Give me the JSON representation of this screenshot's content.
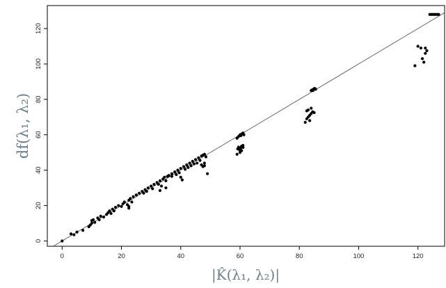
{
  "chart_data": {
    "type": "scatter",
    "title": "",
    "xlabel": "|K̂(λ₁, λ₂)|",
    "ylabel": "df(λ₁, λ₂)",
    "xlim": [
      -5,
      129
    ],
    "ylim": [
      -3,
      133
    ],
    "x_ticks": [
      0,
      20,
      40,
      60,
      80,
      100,
      120
    ],
    "y_ticks": [
      0,
      20,
      40,
      60,
      80,
      100,
      120
    ],
    "reference_line": {
      "type": "identity",
      "slope": 1,
      "intercept": 0,
      "color": "#555555"
    },
    "grid": false,
    "legend": "none",
    "point_color": "#000000",
    "points": [
      [
        0,
        0
      ],
      [
        3,
        4
      ],
      [
        4,
        3.5
      ],
      [
        5,
        5
      ],
      [
        7,
        6
      ],
      [
        9,
        8
      ],
      [
        9.5,
        9
      ],
      [
        10,
        10
      ],
      [
        10,
        11.5
      ],
      [
        10.5,
        12
      ],
      [
        11,
        10.5
      ],
      [
        12,
        13
      ],
      [
        12.5,
        12
      ],
      [
        13,
        14
      ],
      [
        14,
        13.5
      ],
      [
        15,
        15
      ],
      [
        15.5,
        16
      ],
      [
        16,
        17
      ],
      [
        16.5,
        15.5
      ],
      [
        17,
        18
      ],
      [
        17.5,
        17
      ],
      [
        18,
        19
      ],
      [
        19,
        20
      ],
      [
        20,
        19.5
      ],
      [
        20.5,
        21
      ],
      [
        21,
        22
      ],
      [
        22,
        20.5
      ],
      [
        22.5,
        23
      ],
      [
        23,
        24
      ],
      [
        23.5,
        22
      ],
      [
        22.5,
        18.5
      ],
      [
        22.5,
        19.5
      ],
      [
        24,
        25
      ],
      [
        25,
        26
      ],
      [
        26,
        27
      ],
      [
        27,
        28
      ],
      [
        27.5,
        27
      ],
      [
        28,
        29
      ],
      [
        28.5,
        28
      ],
      [
        29,
        30
      ],
      [
        30,
        31
      ],
      [
        30.5,
        29.5
      ],
      [
        31,
        32
      ],
      [
        32,
        33
      ],
      [
        32.5,
        32
      ],
      [
        33,
        34
      ],
      [
        33.5,
        31
      ],
      [
        33,
        28.5
      ],
      [
        34,
        35
      ],
      [
        34.5,
        36
      ],
      [
        35,
        34
      ],
      [
        35,
        30
      ],
      [
        35.5,
        36.5
      ],
      [
        36,
        37
      ],
      [
        37,
        38
      ],
      [
        37,
        36.5
      ],
      [
        38,
        39
      ],
      [
        38.5,
        37.5
      ],
      [
        39,
        40
      ],
      [
        39.5,
        38.5
      ],
      [
        40,
        41
      ],
      [
        40,
        36
      ],
      [
        40.5,
        34.5
      ],
      [
        41,
        42
      ],
      [
        41.5,
        40.5
      ],
      [
        42,
        43
      ],
      [
        42.5,
        41.5
      ],
      [
        43,
        44
      ],
      [
        43.5,
        42.5
      ],
      [
        44,
        45
      ],
      [
        44.5,
        43.5
      ],
      [
        45,
        46
      ],
      [
        45.5,
        44
      ],
      [
        46,
        47
      ],
      [
        46.5,
        45.5
      ],
      [
        47,
        48
      ],
      [
        47.5,
        48.5
      ],
      [
        48,
        49
      ],
      [
        48.5,
        47.5
      ],
      [
        47,
        43
      ],
      [
        47.5,
        42
      ],
      [
        48,
        42.5
      ],
      [
        48,
        44
      ],
      [
        49,
        38
      ],
      [
        59,
        49
      ],
      [
        59.2,
        52
      ],
      [
        59.5,
        53
      ],
      [
        59.8,
        51.5
      ],
      [
        60,
        50
      ],
      [
        60.2,
        52.5
      ],
      [
        60.5,
        53.5
      ],
      [
        61,
        52.8
      ],
      [
        61,
        54
      ],
      [
        60.5,
        51
      ],
      [
        59,
        58
      ],
      [
        59.5,
        59
      ],
      [
        60,
        60
      ],
      [
        60.3,
        59.5
      ],
      [
        60.6,
        60.5
      ],
      [
        61,
        61
      ],
      [
        61.3,
        60
      ],
      [
        82,
        67
      ],
      [
        82.5,
        69
      ],
      [
        83,
        70
      ],
      [
        83.5,
        71
      ],
      [
        84,
        72
      ],
      [
        83,
        74
      ],
      [
        84.5,
        73
      ],
      [
        84,
        75
      ],
      [
        85,
        72.5
      ],
      [
        83.5,
        68
      ],
      [
        82.5,
        73.5
      ],
      [
        84,
        85
      ],
      [
        84.3,
        85.3
      ],
      [
        84.6,
        85.6
      ],
      [
        84.9,
        85.9
      ],
      [
        85.2,
        86.2
      ],
      [
        85.5,
        85.7
      ],
      [
        84.6,
        85
      ],
      [
        119,
        99
      ],
      [
        120,
        110
      ],
      [
        121,
        109
      ],
      [
        121.5,
        103
      ],
      [
        122,
        101
      ],
      [
        122.5,
        106
      ],
      [
        123,
        107.5
      ],
      [
        122.5,
        109
      ],
      [
        124,
        128
      ],
      [
        124.5,
        128
      ],
      [
        125,
        128
      ],
      [
        125.5,
        128
      ],
      [
        126,
        128
      ],
      [
        126.5,
        128
      ],
      [
        127,
        128
      ]
    ]
  }
}
